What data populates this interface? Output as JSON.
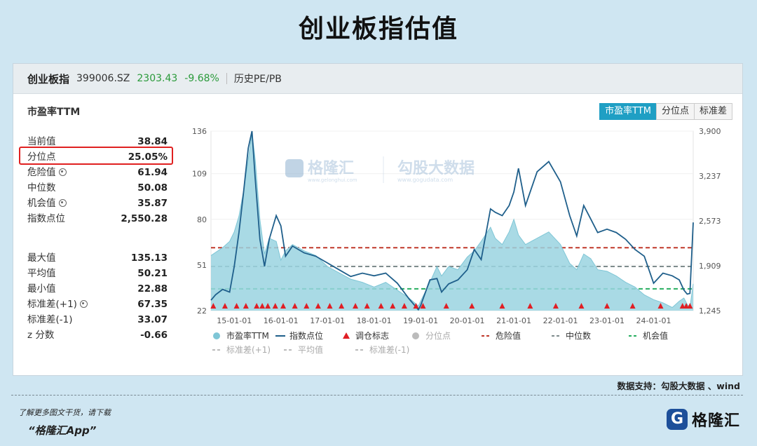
{
  "page": {
    "title": "创业板指估值",
    "source": "数据支持：勾股大数据 、wind",
    "footer_note": "了解更多图文干货，请下载",
    "footer_app": "“格隆汇App”",
    "brand": "格隆汇",
    "brand_icon": "G"
  },
  "header": {
    "name": "创业板指",
    "code": "399006.SZ",
    "price": "2303.43",
    "change": "-9.68%",
    "history": "历史PE/PB"
  },
  "metric_title": "市盈率TTM",
  "tabs": [
    "市盈率TTM",
    "分位点",
    "标准差"
  ],
  "stats_top": [
    {
      "label": "当前值",
      "value": "38.84"
    },
    {
      "label": "分位点",
      "value": "25.05%"
    },
    {
      "label": "危险值",
      "value": "61.94",
      "icon": "gear-icon"
    },
    {
      "label": "中位数",
      "value": "50.08"
    },
    {
      "label": "机会值",
      "value": "35.87",
      "icon": "gear-icon"
    },
    {
      "label": "指数点位",
      "value": "2,550.28"
    }
  ],
  "stats_bottom": [
    {
      "label": "最大值",
      "value": "135.13"
    },
    {
      "label": "平均值",
      "value": "50.21"
    },
    {
      "label": "最小值",
      "value": "22.88"
    },
    {
      "label": "标准差(+1)",
      "value": "67.35",
      "icon": "gear-icon"
    },
    {
      "label": "标准差(-1)",
      "value": "33.07"
    },
    {
      "label": "z 分数",
      "value": "-0.66"
    }
  ],
  "watermark": {
    "left": "格隆汇",
    "left_sub": "www.gelonghui.com",
    "right": "勾股大数据",
    "right_sub": "www.gogudata.com"
  },
  "chart_data": {
    "type": "area",
    "colors": {
      "pe": "#7fc6d6",
      "pe_fill": "#9ad3e0",
      "index": "#1f5f8b",
      "marker": "#e01e24",
      "danger": "#c0392b",
      "median": "#7f8c8d",
      "opportunity": "#27ae60",
      "percentile": "#bbbbbb"
    },
    "x_ticks": [
      "15-01-01",
      "16-01-01",
      "17-01-01",
      "18-01-01",
      "19-01-01",
      "20-01-01",
      "21-01-01",
      "22-01-01",
      "23-01-01",
      "24-01-01"
    ],
    "x_range": [
      2014.5,
      2024.85
    ],
    "y_left_ticks": [
      22,
      51,
      80,
      109,
      136
    ],
    "y_left_range": [
      22,
      136
    ],
    "y_right_ticks": [
      "1,245",
      "1,909",
      "2,573",
      "3,237",
      "3,900"
    ],
    "y_right_range": [
      1245,
      3900
    ],
    "ref_lines": {
      "danger": 61.94,
      "median": 50.08,
      "opportunity": 35.87
    },
    "pe_series": [
      [
        2014.5,
        57
      ],
      [
        2014.6,
        59
      ],
      [
        2014.75,
        62
      ],
      [
        2014.9,
        66
      ],
      [
        2015.0,
        72
      ],
      [
        2015.1,
        82
      ],
      [
        2015.2,
        98
      ],
      [
        2015.3,
        118
      ],
      [
        2015.38,
        135
      ],
      [
        2015.45,
        118
      ],
      [
        2015.55,
        80
      ],
      [
        2015.65,
        58
      ],
      [
        2015.75,
        68
      ],
      [
        2015.9,
        66
      ],
      [
        2016.0,
        54
      ],
      [
        2016.1,
        60
      ],
      [
        2016.25,
        64
      ],
      [
        2016.5,
        60
      ],
      [
        2016.75,
        57
      ],
      [
        2017.0,
        50
      ],
      [
        2017.25,
        46
      ],
      [
        2017.5,
        42
      ],
      [
        2017.75,
        40
      ],
      [
        2018.0,
        37
      ],
      [
        2018.25,
        40
      ],
      [
        2018.5,
        35
      ],
      [
        2018.75,
        30
      ],
      [
        2018.95,
        25
      ],
      [
        2019.0,
        28
      ],
      [
        2019.2,
        40
      ],
      [
        2019.35,
        50
      ],
      [
        2019.45,
        44
      ],
      [
        2019.6,
        50
      ],
      [
        2019.8,
        48
      ],
      [
        2020.0,
        56
      ],
      [
        2020.15,
        60
      ],
      [
        2020.3,
        66
      ],
      [
        2020.5,
        75
      ],
      [
        2020.6,
        68
      ],
      [
        2020.75,
        64
      ],
      [
        2020.9,
        72
      ],
      [
        2021.0,
        80
      ],
      [
        2021.1,
        70
      ],
      [
        2021.25,
        64
      ],
      [
        2021.5,
        68
      ],
      [
        2021.75,
        72
      ],
      [
        2022.0,
        64
      ],
      [
        2022.2,
        52
      ],
      [
        2022.35,
        48
      ],
      [
        2022.5,
        58
      ],
      [
        2022.65,
        55
      ],
      [
        2022.8,
        48
      ],
      [
        2023.0,
        47
      ],
      [
        2023.2,
        44
      ],
      [
        2023.4,
        40
      ],
      [
        2023.6,
        37
      ],
      [
        2023.8,
        32
      ],
      [
        2024.0,
        29
      ],
      [
        2024.2,
        27
      ],
      [
        2024.4,
        24
      ],
      [
        2024.55,
        28
      ],
      [
        2024.65,
        30
      ],
      [
        2024.72,
        26
      ],
      [
        2024.78,
        24
      ],
      [
        2024.85,
        39
      ]
    ],
    "index_series": [
      [
        2014.5,
        1400
      ],
      [
        2014.6,
        1480
      ],
      [
        2014.75,
        1560
      ],
      [
        2014.9,
        1520
      ],
      [
        2015.0,
        1900
      ],
      [
        2015.1,
        2400
      ],
      [
        2015.2,
        3000
      ],
      [
        2015.3,
        3650
      ],
      [
        2015.38,
        3900
      ],
      [
        2015.45,
        3200
      ],
      [
        2015.55,
        2300
      ],
      [
        2015.65,
        1900
      ],
      [
        2015.75,
        2300
      ],
      [
        2015.9,
        2650
      ],
      [
        2016.0,
        2500
      ],
      [
        2016.1,
        2050
      ],
      [
        2016.25,
        2200
      ],
      [
        2016.5,
        2100
      ],
      [
        2016.75,
        2050
      ],
      [
        2017.0,
        1950
      ],
      [
        2017.25,
        1850
      ],
      [
        2017.5,
        1750
      ],
      [
        2017.75,
        1800
      ],
      [
        2018.0,
        1760
      ],
      [
        2018.25,
        1800
      ],
      [
        2018.5,
        1650
      ],
      [
        2018.75,
        1420
      ],
      [
        2018.95,
        1260
      ],
      [
        2019.0,
        1320
      ],
      [
        2019.2,
        1700
      ],
      [
        2019.35,
        1720
      ],
      [
        2019.45,
        1520
      ],
      [
        2019.6,
        1640
      ],
      [
        2019.8,
        1700
      ],
      [
        2020.0,
        1850
      ],
      [
        2020.15,
        2150
      ],
      [
        2020.3,
        2000
      ],
      [
        2020.5,
        2750
      ],
      [
        2020.6,
        2700
      ],
      [
        2020.75,
        2650
      ],
      [
        2020.9,
        2800
      ],
      [
        2021.0,
        3000
      ],
      [
        2021.1,
        3350
      ],
      [
        2021.25,
        2800
      ],
      [
        2021.5,
        3300
      ],
      [
        2021.75,
        3450
      ],
      [
        2022.0,
        3150
      ],
      [
        2022.2,
        2650
      ],
      [
        2022.35,
        2350
      ],
      [
        2022.5,
        2800
      ],
      [
        2022.65,
        2600
      ],
      [
        2022.8,
        2400
      ],
      [
        2023.0,
        2450
      ],
      [
        2023.2,
        2400
      ],
      [
        2023.4,
        2300
      ],
      [
        2023.6,
        2150
      ],
      [
        2023.8,
        2050
      ],
      [
        2024.0,
        1650
      ],
      [
        2024.2,
        1800
      ],
      [
        2024.4,
        1760
      ],
      [
        2024.55,
        1700
      ],
      [
        2024.65,
        1550
      ],
      [
        2024.72,
        1490
      ],
      [
        2024.78,
        1500
      ],
      [
        2024.85,
        2550
      ]
    ],
    "markers": [
      2014.55,
      2014.8,
      2015.05,
      2015.25,
      2015.48,
      2015.6,
      2015.72,
      2015.88,
      2016.05,
      2016.3,
      2016.55,
      2016.8,
      2017.05,
      2017.3,
      2017.6,
      2017.85,
      2018.15,
      2018.4,
      2018.65,
      2018.9,
      2019.05,
      2019.55,
      2020.1,
      2020.75,
      2021.35,
      2021.9,
      2022.45,
      2023.0,
      2023.55,
      2024.15,
      2024.62,
      2024.7,
      2024.78
    ],
    "legend": [
      {
        "label": "市盈率TTM",
        "kind": "dot",
        "color": "#7fc6d6"
      },
      {
        "label": "指数点位",
        "kind": "line",
        "color": "#1f5f8b"
      },
      {
        "label": "调仓标志",
        "kind": "tri",
        "color": "#e01e24"
      },
      {
        "label": "分位点",
        "kind": "dot",
        "color": "#bbbbbb",
        "muted": true
      },
      {
        "label": "危险值",
        "kind": "dash",
        "color": "#c0392b"
      },
      {
        "label": "中位数",
        "kind": "dash",
        "color": "#7f8c8d"
      },
      {
        "label": "机会值",
        "kind": "dash",
        "color": "#27ae60"
      },
      {
        "label": "标准差(+1)",
        "kind": "dash",
        "color": "#bbbbbb",
        "muted": true
      },
      {
        "label": "平均值",
        "kind": "dash",
        "color": "#bbbbbb",
        "muted": true
      },
      {
        "label": "标准差(-1)",
        "kind": "dash",
        "color": "#bbbbbb",
        "muted": true
      }
    ]
  }
}
